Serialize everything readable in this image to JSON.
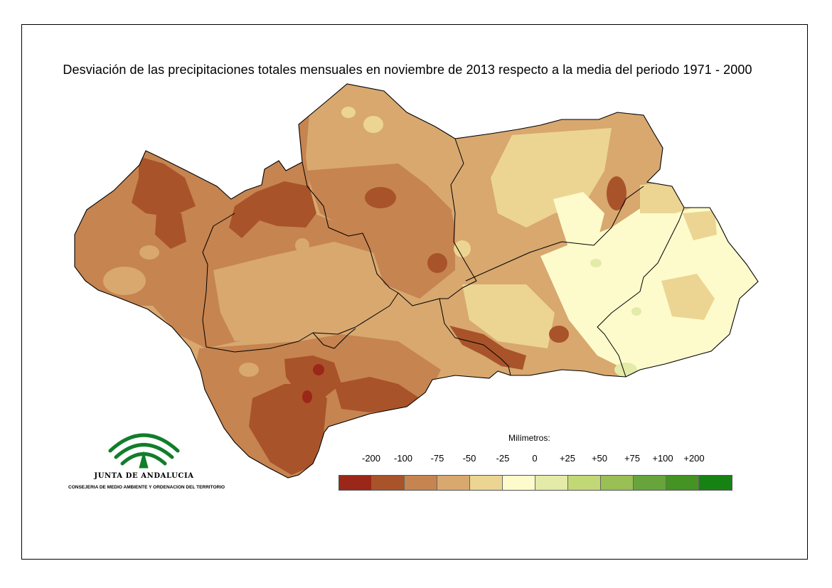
{
  "title": "Desviación de las precipitaciones totales mensuales en noviembre de 2013 respecto a la media del periodo 1971 - 2000",
  "legend": {
    "title": "Milímetros:",
    "ticks": [
      "-200",
      "-100",
      "-75",
      "-50",
      "-25",
      "0",
      "+25",
      "+50",
      "+75",
      "+100",
      "+200"
    ],
    "colors": [
      "#9b2718",
      "#a9532a",
      "#c68450",
      "#d8a86f",
      "#ecd592",
      "#fdfbcc",
      "#e4eaa7",
      "#c2d877",
      "#99bf55",
      "#67a53c",
      "#459323",
      "#178214"
    ]
  },
  "logo": {
    "name": "JUNTA DE ANDALUCIA",
    "subtitle": "CONSEJERIA DE MEDIO AMBIENTE Y ORDENACION DEL TERRITORIO",
    "color": "#127d2b"
  },
  "map": {
    "region": "Andalucía",
    "border_color": "#000000"
  }
}
